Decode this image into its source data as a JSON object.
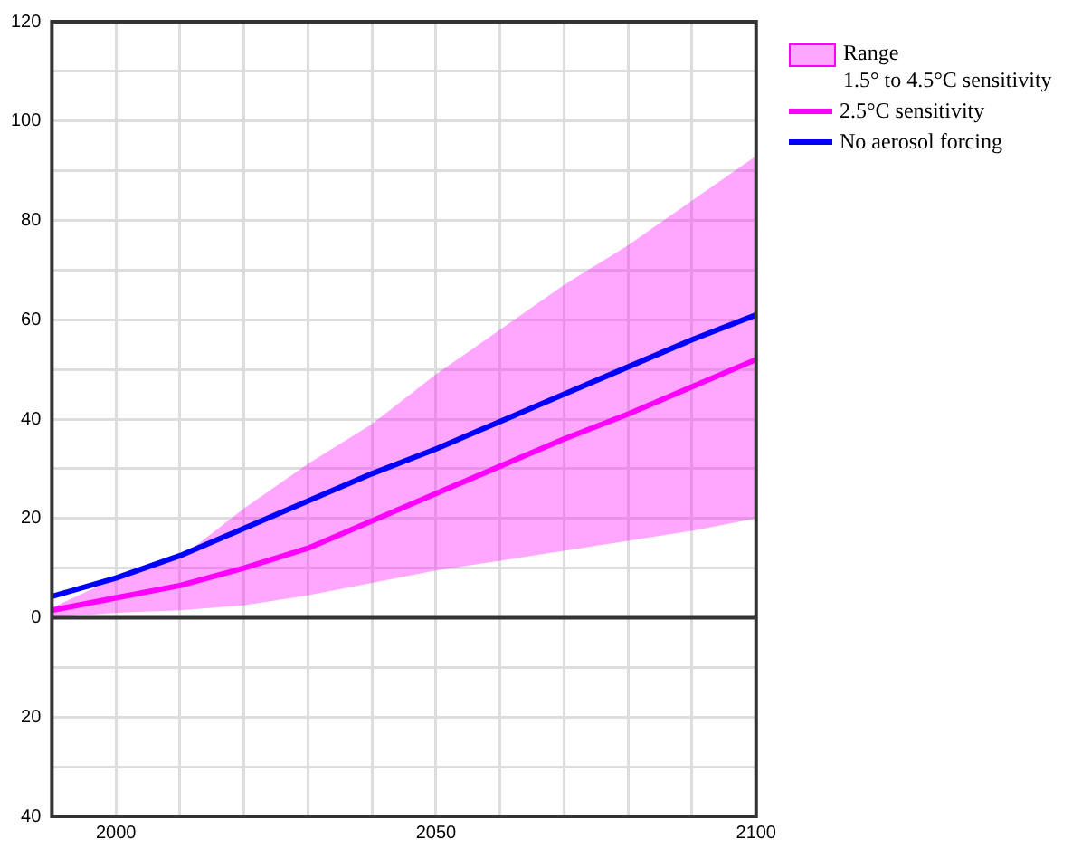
{
  "chart_data": {
    "type": "line",
    "x": [
      1990,
      2000,
      2010,
      2020,
      2030,
      2040,
      2050,
      2060,
      2070,
      2080,
      2090,
      2100
    ],
    "series": [
      {
        "name": "2.5°C sensitivity",
        "type": "line",
        "color": "#ff00ff",
        "values": [
          1.5,
          4,
          6.5,
          10,
          14,
          19.5,
          25,
          30.5,
          36,
          41,
          46.5,
          52
        ],
        "lower": [
          0,
          1,
          1.5,
          2.5,
          4.5,
          7,
          9.5,
          11.5,
          13.5,
          15.5,
          17.5,
          20
        ],
        "upper": [
          2,
          8,
          12,
          22,
          31,
          39,
          49,
          58,
          67,
          75,
          84,
          93
        ]
      },
      {
        "name": "No aerosol forcing",
        "type": "line",
        "color": "#0000ff",
        "values": [
          4.3,
          8,
          12.5,
          18,
          23.5,
          29,
          34,
          39.5,
          45,
          50.5,
          56,
          61
        ]
      }
    ],
    "annotations": [
      "Range\n1.5° to 4.5°C sensitivity"
    ],
    "xlim": [
      1990,
      2100
    ],
    "xticks": [
      {
        "value": 1990,
        "label": null
      },
      2000,
      {
        "value": 2010,
        "label": null
      },
      {
        "value": 2020,
        "label": null
      },
      {
        "value": 2030,
        "label": null
      },
      {
        "value": 2040,
        "label": null
      },
      2050,
      {
        "value": 2060,
        "label": null
      },
      {
        "value": 2070,
        "label": null
      },
      {
        "value": 2080,
        "label": null
      },
      {
        "value": 2090,
        "label": null
      },
      2100
    ],
    "ylim": [
      -40,
      120
    ],
    "yticks": [
      {
        "value": -40,
        "label": "40"
      },
      {
        "value": -30,
        "label": null
      },
      {
        "value": -20,
        "label": "20"
      },
      {
        "value": -10,
        "label": null
      },
      0,
      {
        "value": 10,
        "label": null
      },
      20,
      {
        "value": 30,
        "label": null
      },
      40,
      {
        "value": 50,
        "label": null
      },
      60,
      {
        "value": 70,
        "label": null
      },
      80,
      {
        "value": 90,
        "label": null
      },
      100,
      {
        "value": 110,
        "label": null
      },
      120
    ],
    "ref_lines": [
      {
        "axis": "y",
        "value": 0,
        "color": "#333333"
      }
    ],
    "grid": true,
    "legend": "top right",
    "line_style": "solid",
    "marker": "none"
  }
}
